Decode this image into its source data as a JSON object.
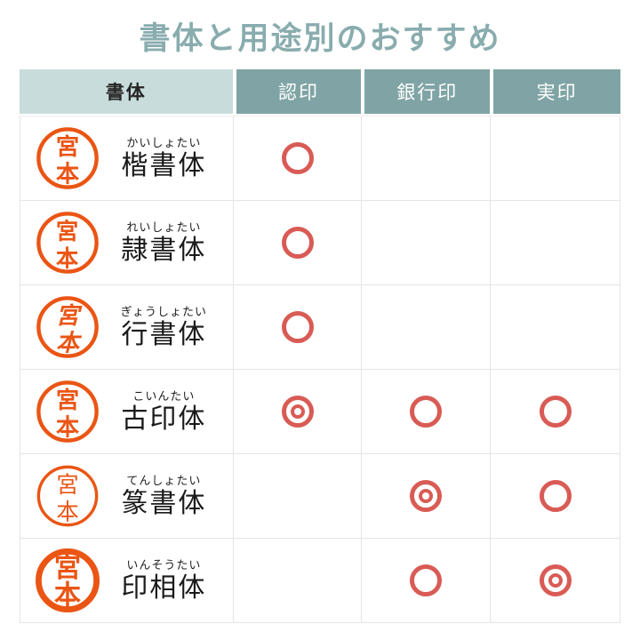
{
  "title": "書体と用途別のおすすめ",
  "colors": {
    "title_teal": "#89acae",
    "header_dark_teal": "#80a4a5",
    "header_light_teal": "#c8dcdb",
    "mark_red": "#d95b55",
    "seal_orange": "#ea5514",
    "grid_line": "#e5e5e5"
  },
  "table": {
    "headers": [
      {
        "label": "書体"
      },
      {
        "label": "認印"
      },
      {
        "label": "銀行印"
      },
      {
        "label": "実印"
      }
    ],
    "seal_text": "宮本",
    "rows": [
      {
        "furigana": "かいしょたい",
        "name": "楷書体",
        "seal_style": "kaisho",
        "marks": [
          "circle",
          "none",
          "none"
        ]
      },
      {
        "furigana": "れいしょたい",
        "name": "隷書体",
        "seal_style": "reisho",
        "marks": [
          "circle",
          "none",
          "none"
        ]
      },
      {
        "furigana": "ぎょうしょたい",
        "name": "行書体",
        "seal_style": "gyosho",
        "marks": [
          "circle",
          "none",
          "none"
        ]
      },
      {
        "furigana": "こいんたい",
        "name": "古印体",
        "seal_style": "koin",
        "marks": [
          "double",
          "circle",
          "circle"
        ]
      },
      {
        "furigana": "てんしょたい",
        "name": "篆書体",
        "seal_style": "tensho",
        "marks": [
          "none",
          "double",
          "circle"
        ]
      },
      {
        "furigana": "いんそうたい",
        "name": "印相体",
        "seal_style": "insou",
        "marks": [
          "none",
          "circle",
          "double"
        ]
      }
    ]
  }
}
